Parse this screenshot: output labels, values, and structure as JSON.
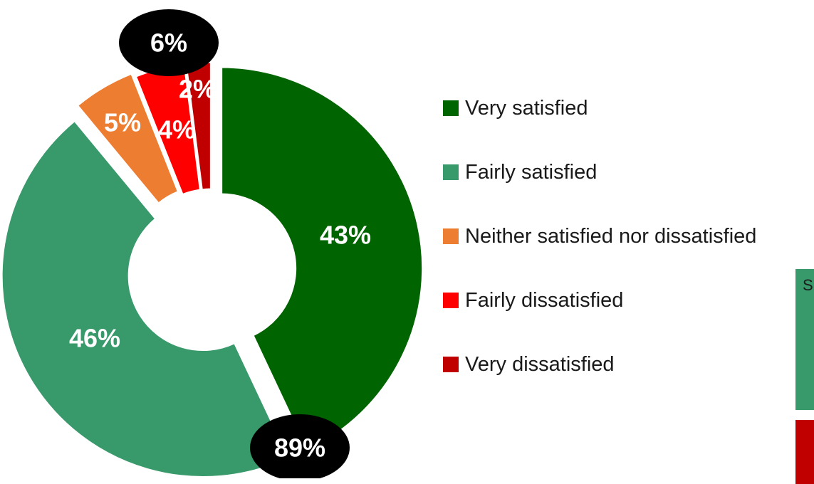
{
  "chart_data": {
    "type": "pie",
    "variant": "donut",
    "title": "",
    "categories": [
      "Very satisfied",
      "Fairly satisfied",
      "Neither satisfied nor dissatisfied",
      "Fairly dissatisfied",
      "Very dissatisfied"
    ],
    "values": [
      43,
      46,
      5,
      4,
      2
    ],
    "data_labels": [
      "43%",
      "46%",
      "5%",
      "4%",
      "2%"
    ],
    "colors": [
      "#006400",
      "#38996B",
      "#ED7D31",
      "#FF0000",
      "#C00000"
    ],
    "legend_position": "right",
    "callouts": [
      {
        "text": "89%",
        "description_group": "satisfied"
      },
      {
        "text": "6%",
        "description_group": "dissatisfied"
      }
    ]
  },
  "side_boxes": [
    {
      "text": "S",
      "color": "#38996B"
    },
    {
      "text": "",
      "color": "#C00000"
    }
  ]
}
